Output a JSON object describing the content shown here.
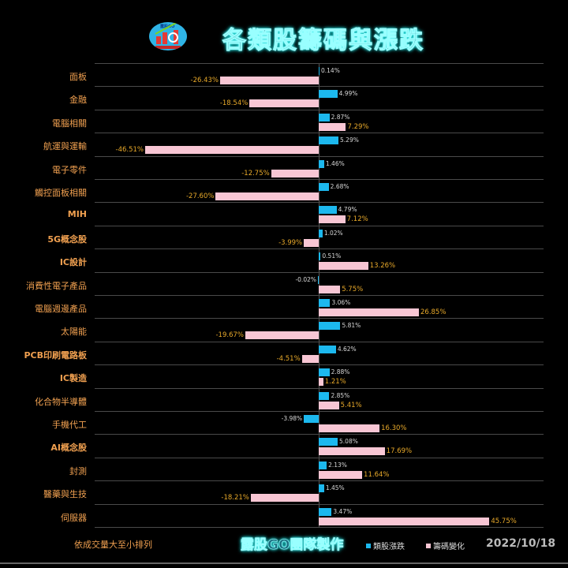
{
  "header": {
    "title": "各類股籌碼與漲跌",
    "logo_text": "露股GO"
  },
  "footer": {
    "note": "依成交量大至小排列",
    "credit": "露股GO團隊製作",
    "legend_blue": "類股漲跌",
    "legend_pink": "籌碼變化",
    "date": "2022/10/18"
  },
  "colors": {
    "blue": "#1cb8ee",
    "pink": "#f8c6d4",
    "category_text": "#f0a050",
    "pink_label": "#e8a92a",
    "title_glow": "#33eeee"
  },
  "chart_data": {
    "type": "bar",
    "orientation": "horizontal",
    "title": "各類股籌碼與漲跌",
    "xlabel": "",
    "ylabel": "",
    "xlim": [
      -60,
      60
    ],
    "grid": true,
    "legend_position": "bottom",
    "categories": [
      "面板",
      "金融",
      "電腦相關",
      "航運與運輸",
      "電子零件",
      "觸控面板相關",
      "MIH",
      "5G概念股",
      "IC設計",
      "消費性電子產品",
      "電腦週邊產品",
      "太陽能",
      "PCB印刷電路板",
      "IC製造",
      "化合物半導體",
      "手機代工",
      "AI概念股",
      "封測",
      "醫藥與生技",
      "伺服器"
    ],
    "series": [
      {
        "name": "類股漲跌",
        "color": "#1cb8ee",
        "values": [
          0.14,
          4.99,
          2.87,
          5.29,
          1.46,
          2.68,
          4.79,
          1.02,
          0.51,
          -0.02,
          3.06,
          5.81,
          4.62,
          2.88,
          2.85,
          -3.98,
          5.08,
          2.13,
          1.45,
          3.47
        ]
      },
      {
        "name": "籌碼變化",
        "color": "#f8c6d4",
        "values": [
          -26.43,
          -18.54,
          7.29,
          -46.51,
          -12.75,
          -27.6,
          7.12,
          -3.99,
          13.26,
          5.75,
          26.85,
          -19.67,
          -4.51,
          1.21,
          5.41,
          16.3,
          17.69,
          11.64,
          -18.21,
          45.75
        ]
      }
    ],
    "annotations": [
      "依成交量大至小排列"
    ]
  },
  "rows": [
    {
      "cat": "面板",
      "blue": "0.14%",
      "pink": "-26.43%"
    },
    {
      "cat": "金融",
      "blue": "4.99%",
      "pink": "-18.54%"
    },
    {
      "cat": "電腦相關",
      "blue": "2.87%",
      "pink": "7.29%"
    },
    {
      "cat": "航運與運輸",
      "blue": "5.29%",
      "pink": "-46.51%"
    },
    {
      "cat": "電子零件",
      "blue": "1.46%",
      "pink": "-12.75%"
    },
    {
      "cat": "觸控面板相關",
      "blue": "2.68%",
      "pink": "-27.60%"
    },
    {
      "cat": "MIH",
      "blue": "4.79%",
      "pink": "7.12%"
    },
    {
      "cat": "5G概念股",
      "blue": "1.02%",
      "pink": "-3.99%"
    },
    {
      "cat": "IC設計",
      "blue": "0.51%",
      "pink": "13.26%"
    },
    {
      "cat": "消費性電子產品",
      "blue": "-0.02%",
      "pink": "5.75%"
    },
    {
      "cat": "電腦週邊產品",
      "blue": "3.06%",
      "pink": "26.85%"
    },
    {
      "cat": "太陽能",
      "blue": "5.81%",
      "pink": "-19.67%"
    },
    {
      "cat": "PCB印刷電路板",
      "blue": "4.62%",
      "pink": "-4.51%"
    },
    {
      "cat": "IC製造",
      "blue": "2.88%",
      "pink": "1.21%"
    },
    {
      "cat": "化合物半導體",
      "blue": "2.85%",
      "pink": "5.41%"
    },
    {
      "cat": "手機代工",
      "blue": "-3.98%",
      "pink": "16.30%"
    },
    {
      "cat": "AI概念股",
      "blue": "5.08%",
      "pink": "17.69%"
    },
    {
      "cat": "封測",
      "blue": "2.13%",
      "pink": "11.64%"
    },
    {
      "cat": "醫藥與生技",
      "blue": "1.45%",
      "pink": "-18.21%"
    },
    {
      "cat": "伺服器",
      "blue": "3.47%",
      "pink": "45.75%"
    }
  ]
}
